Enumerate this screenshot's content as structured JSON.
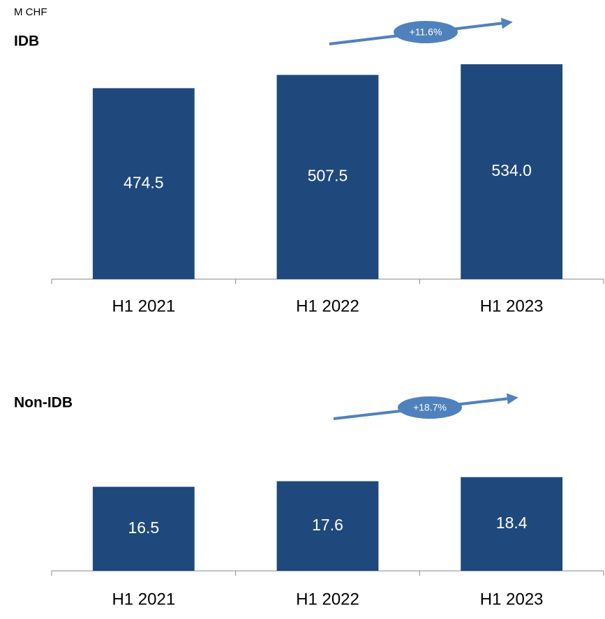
{
  "unit_label": "M CHF",
  "chart_data": [
    {
      "type": "bar",
      "title": "IDB",
      "categories": [
        "H1 2021",
        "H1 2022",
        "H1 2023"
      ],
      "values": [
        474.5,
        507.5,
        534
      ],
      "value_labels": [
        "474.5",
        "507.5",
        "534.0"
      ],
      "color": "#1f497d",
      "ylim": [
        0,
        600
      ],
      "annotation": "+11.6%"
    },
    {
      "type": "bar",
      "title": "Non-IDB",
      "categories": [
        "H1 2021",
        "H1 2022",
        "H1 2023"
      ],
      "values": [
        16.5,
        17.6,
        18.4
      ],
      "value_labels": [
        "16.5",
        "17.6",
        "18.4"
      ],
      "color": "#1f497d",
      "ylim": [
        0,
        20
      ],
      "annotation": "+18.7%"
    }
  ]
}
